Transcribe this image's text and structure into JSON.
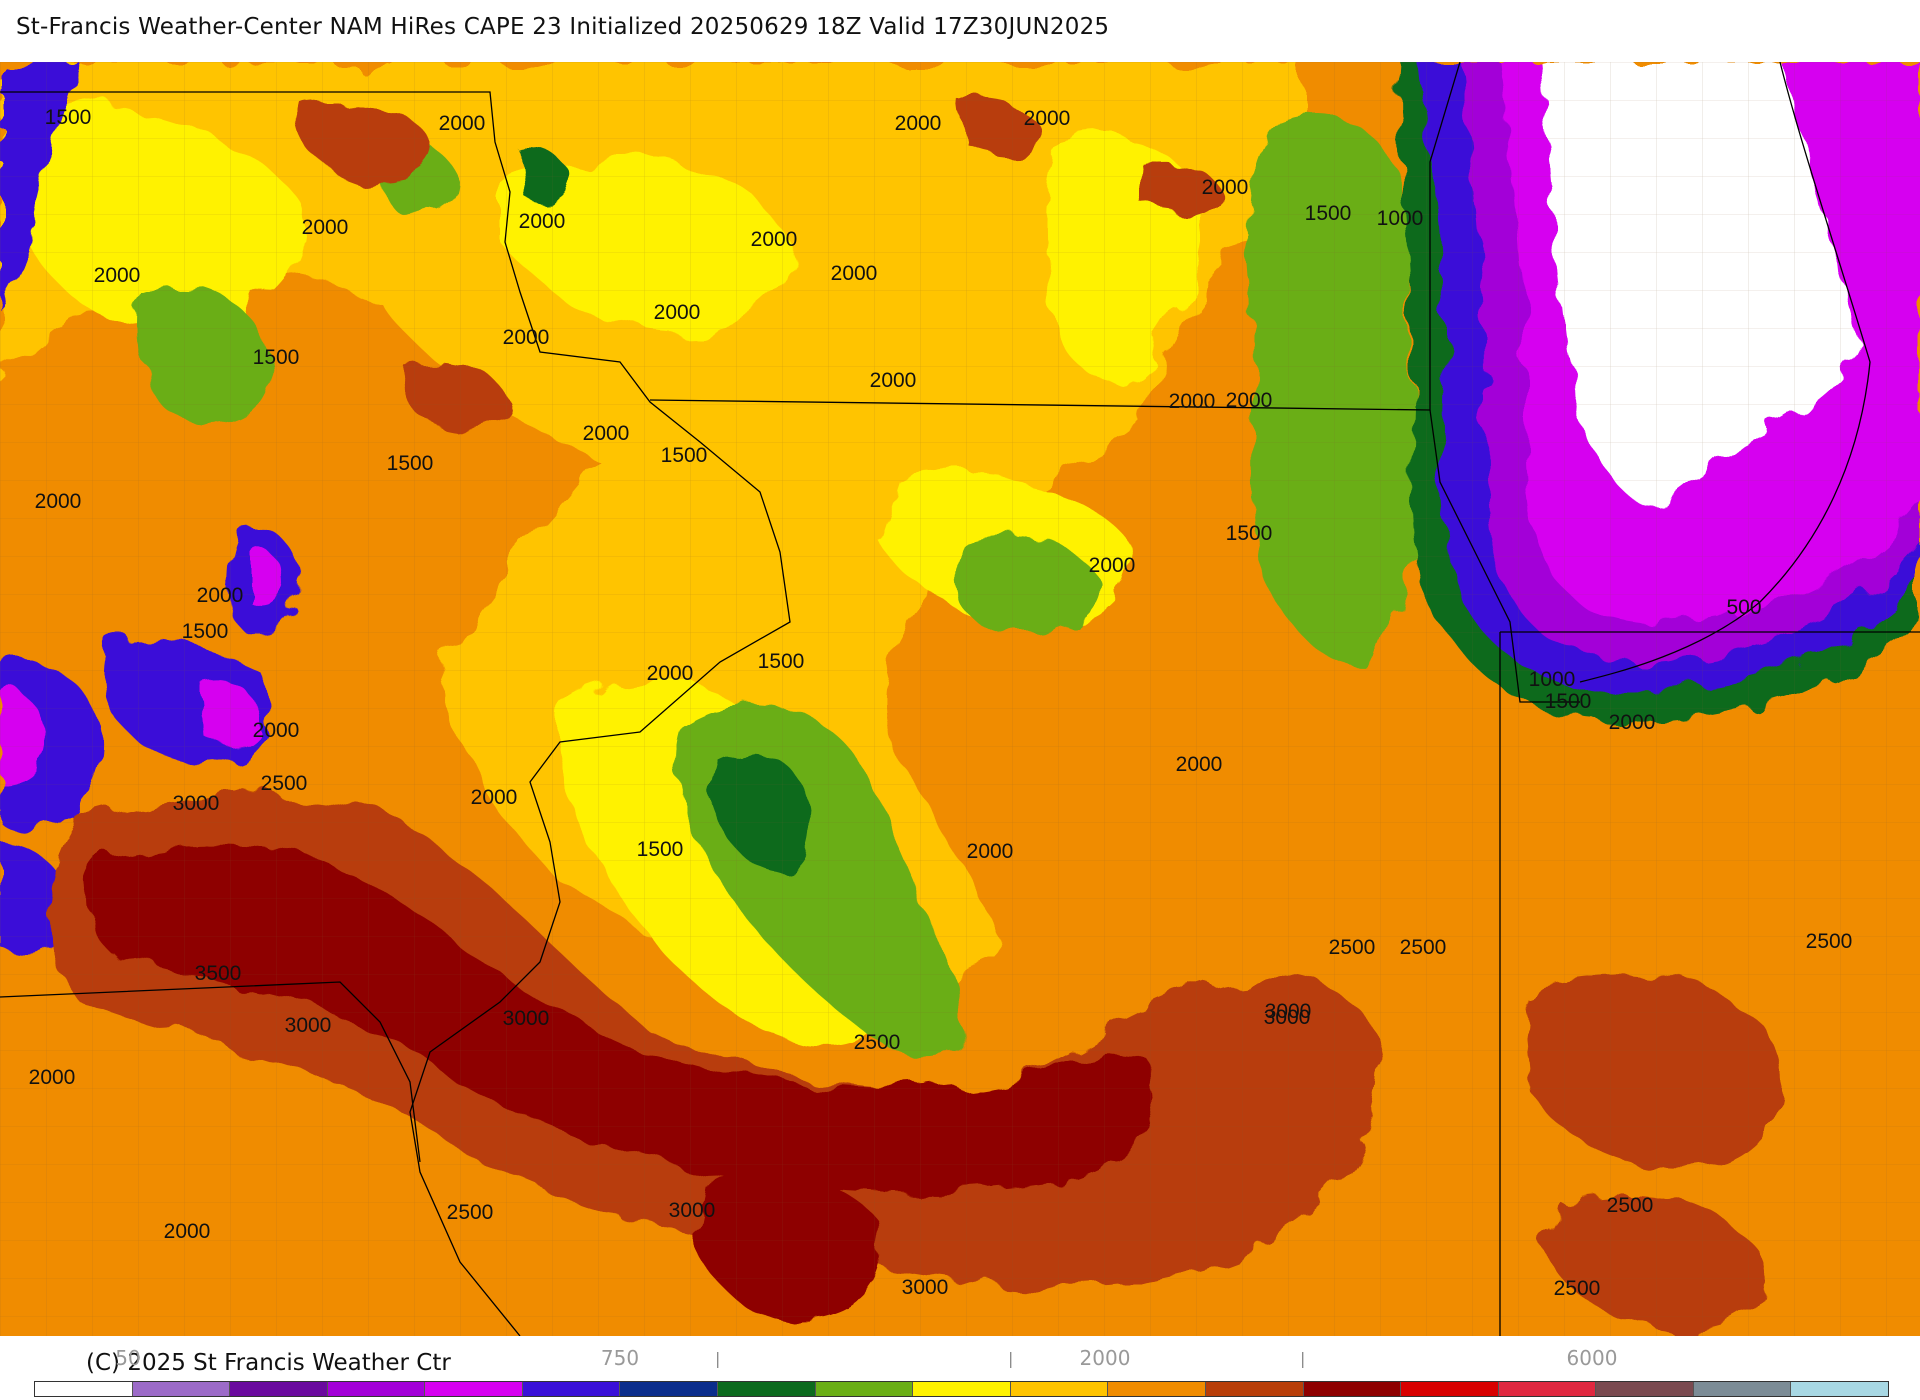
{
  "title": "St-Francis Weather-Center NAM HiRes CAPE  23 Initialized 20250629 18Z Valid 17Z30JUN2025",
  "copyright": "(C) 2025 St Francis Weather Ctr",
  "colorbar": {
    "swatches": [
      "#ffffff",
      "#9c6bc8",
      "#6a0a9e",
      "#a300d8",
      "#d600f0",
      "#3a10d8",
      "#0b2d8c",
      "#0c6a1e",
      "#6aae16",
      "#fff200",
      "#ffc400",
      "#f08c00",
      "#b83e08",
      "#8e0000",
      "#d80000",
      "#e02840",
      "#7a4a50",
      "#7c8c96",
      "#a8d8e4"
    ],
    "labels": [
      {
        "text": "50"
      },
      {
        "text": "750"
      },
      {
        "text": "2000"
      },
      {
        "text": "6000"
      }
    ]
  },
  "contour_labels": [
    {
      "text": "1500"
    },
    {
      "text": "2000"
    },
    {
      "text": "2000"
    },
    {
      "text": "2000"
    },
    {
      "text": "2000"
    },
    {
      "text": "2000"
    },
    {
      "text": "2000"
    },
    {
      "text": "2000"
    },
    {
      "text": "2000"
    },
    {
      "text": "1500"
    },
    {
      "text": "1000"
    },
    {
      "text": "2000"
    },
    {
      "text": "1500"
    },
    {
      "text": "2000"
    },
    {
      "text": "2000"
    },
    {
      "text": "2000"
    },
    {
      "text": "2000"
    },
    {
      "text": "2000"
    },
    {
      "text": "1500"
    },
    {
      "text": "2000"
    },
    {
      "text": "1500"
    },
    {
      "text": "1500"
    },
    {
      "text": "2000"
    },
    {
      "text": "2000"
    },
    {
      "text": "1500"
    },
    {
      "text": "2000"
    },
    {
      "text": "500"
    },
    {
      "text": "1000"
    },
    {
      "text": "1500"
    },
    {
      "text": "2000"
    },
    {
      "text": "2000"
    },
    {
      "text": "2000"
    },
    {
      "text": "2500"
    },
    {
      "text": "3000"
    },
    {
      "text": "2000"
    },
    {
      "text": "1500"
    },
    {
      "text": "1500"
    },
    {
      "text": "2000"
    },
    {
      "text": "2000"
    },
    {
      "text": "2500"
    },
    {
      "text": "2500"
    },
    {
      "text": "3500"
    },
    {
      "text": "3000"
    },
    {
      "text": "3000"
    },
    {
      "text": "3000"
    },
    {
      "text": "2500"
    },
    {
      "text": "2000"
    },
    {
      "text": "2500"
    },
    {
      "text": "3000"
    },
    {
      "text": "2500"
    },
    {
      "text": "3000"
    },
    {
      "text": "2000"
    },
    {
      "text": "3000"
    },
    {
      "text": "2500"
    },
    {
      "text": "2500"
    }
  ]
}
